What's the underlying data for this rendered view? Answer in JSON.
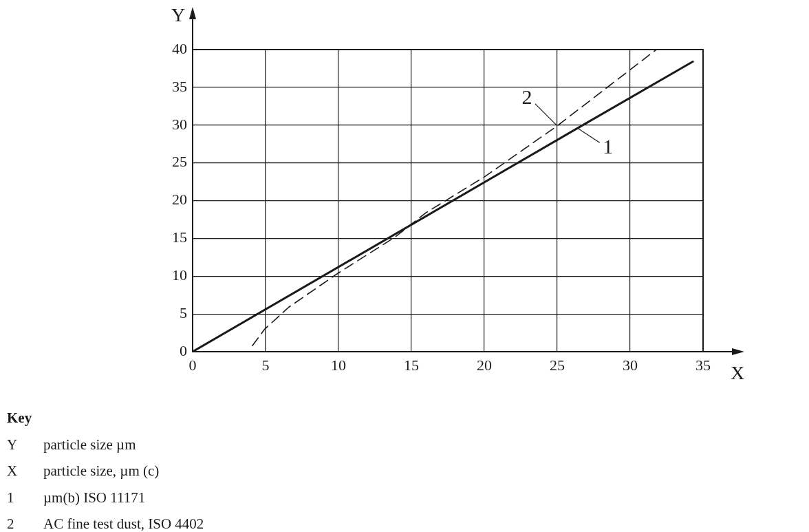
{
  "chart_data": {
    "type": "line",
    "xlabel": "X",
    "ylabel": "Y",
    "xlim": [
      0,
      35
    ],
    "xticks": [
      0,
      5,
      10,
      15,
      20,
      25,
      30,
      35
    ],
    "ylim": [
      0,
      40
    ],
    "yticks": [
      0,
      5,
      10,
      15,
      20,
      25,
      30,
      35,
      40
    ],
    "grid": true,
    "legend": false,
    "marker": "none",
    "series": [
      {
        "color": "#1a1a1a",
        "line_style": "solid",
        "x": [
          0,
          26.4,
          34.3
        ],
        "values": [
          0,
          29.6,
          38.4
        ]
      },
      {
        "color": "#1a1a1a",
        "line_style": "dashed",
        "x": [
          4.1,
          4.95,
          6.6,
          9.9,
          13.9,
          16.0,
          20.05,
          25.0,
          31.8
        ],
        "values": [
          0.8,
          3.0,
          5.9,
          10.3,
          15.2,
          18.4,
          23.2,
          29.9,
          40
        ]
      }
    ],
    "annotations": [
      {
        "text": "1",
        "x": 26.4,
        "y": 29.6
      },
      {
        "text": "2",
        "x": 25.0,
        "y": 29.9
      },
      "Key",
      "Y    particle size µm",
      "X    particle size, µm (c)",
      "1    µm(b) ISO 11171",
      "2    AC fine test dust, ISO 4402"
    ]
  }
}
